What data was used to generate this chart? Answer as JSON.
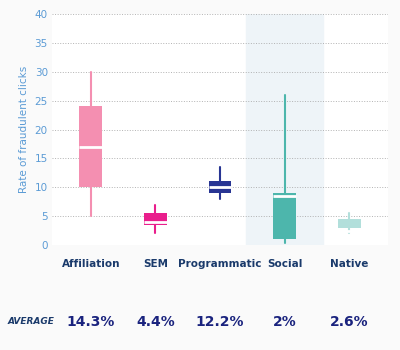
{
  "categories": [
    "Affiliation",
    "SEM",
    "Programmatic",
    "Social",
    "Native"
  ],
  "averages": [
    "14.3%",
    "4.4%",
    "12.2%",
    "2%",
    "2.6%"
  ],
  "colors": [
    "#F48FB1",
    "#E91E8C",
    "#283593",
    "#4DB6AC",
    "#B2DFDB"
  ],
  "median_color": "#FFFFFF",
  "boxes": [
    {
      "q1": 10,
      "median": 17,
      "q3": 24,
      "whislo": 5,
      "whishi": 30
    },
    {
      "q1": 3.5,
      "median": 4.0,
      "q3": 5.5,
      "whislo": 2.0,
      "whishi": 7.0
    },
    {
      "q1": 9.0,
      "median": 10.0,
      "q3": 11.0,
      "whislo": 8.0,
      "whishi": 13.5
    },
    {
      "q1": 1.0,
      "median": 8.5,
      "q3": 9.0,
      "whislo": 0.3,
      "whishi": 26.0
    },
    {
      "q1": 3.0,
      "median": 2.5,
      "q3": 4.5,
      "whislo": 2.0,
      "whishi": 5.5
    }
  ],
  "ylabel": "Rate of fraudulent clicks",
  "ylim": [
    0,
    40
  ],
  "yticks": [
    0,
    5,
    10,
    15,
    20,
    25,
    30,
    35,
    40
  ],
  "background_color": "#FAFAFA",
  "plot_bg_color": "#FFFFFF",
  "social_bg_color": "#EEF4F8",
  "grid_color": "#AAAAAA",
  "ytick_color": "#5B9BD5",
  "xlabel_color": "#1A3A6B",
  "ylabel_color": "#5B9BD5",
  "average_label": "AVERAGE",
  "average_label_color": "#1A3A6B",
  "average_value_color": "#1A237E",
  "box_width": 0.35,
  "whisker_linewidth": 1.5
}
